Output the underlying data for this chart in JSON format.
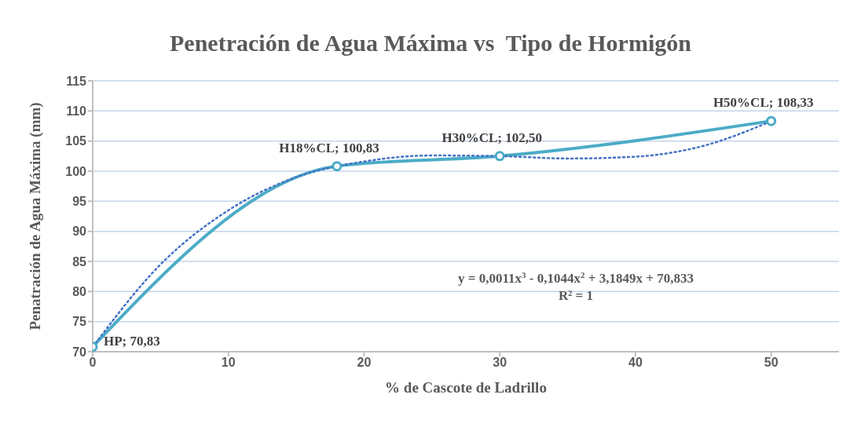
{
  "chart_data": {
    "type": "line",
    "title": "Penetración de Agua Máxima vs  Tipo de Hormigón",
    "xlabel": "% de Cascote de Ladrillo",
    "ylabel": "Penatración de Agua Máxima (mm)",
    "x": [
      0,
      18,
      30,
      50
    ],
    "series": [
      {
        "color": "#4bacc6",
        "marker": "circle",
        "values": [
          70.83,
          100.83,
          102.5,
          108.33
        ],
        "value_labels": [
          "HP; 70,83",
          "H18%CL; 100,83",
          "H30%CL; 102,50",
          "H50%CL; 108,33"
        ]
      },
      {
        "color": "#4472c4",
        "line_style": "dotted",
        "marker": "none",
        "x": [
          0,
          5,
          10,
          15,
          20,
          25,
          30,
          35,
          40,
          45,
          50
        ],
        "values": [
          70.8,
          84.5,
          93.5,
          99,
          101.6,
          102.6,
          102.5,
          102.1,
          102.4,
          104.2,
          108.3
        ]
      }
    ],
    "annotations": [
      "y = 0,0011x$^{3}$ - 0,1044x$^{2}$ + 3,1849x + 70,833",
      "R² = 1"
    ],
    "xlim": [
      0,
      55
    ],
    "xticks": [
      0,
      10,
      20,
      30,
      40,
      50
    ],
    "ylim": [
      70,
      115
    ],
    "yticks": [
      70,
      75,
      80,
      85,
      90,
      95,
      100,
      105,
      110,
      115
    ],
    "grid": "y",
    "legend": false
  }
}
